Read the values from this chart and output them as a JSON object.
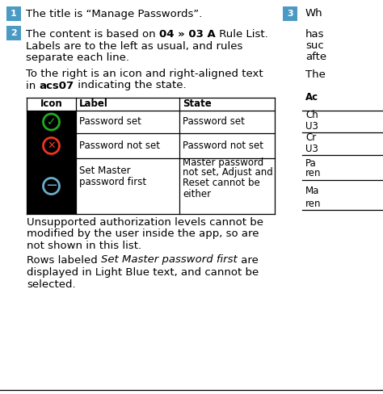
{
  "bg_color": "#ffffff",
  "badge_color": "#4a9ac4",
  "icon_green_color": "#22aa22",
  "icon_red_color": "#ee3322",
  "icon_blue_color": "#6aadcc",
  "icon_black_bg": "#000000",
  "badge1_text": "1",
  "badge2_text": "2",
  "badge3_text": "3",
  "line1": "The title is “Manage Passwords”.",
  "line2_normal": "The content is based on ",
  "line2_bold": "04 » 03 A",
  "line2_rest": " Rule List.",
  "line3": "Labels are to the left as usual, and rules",
  "line4": "separate each line.",
  "line5": "To the right is an icon and right-aligned text",
  "line6_normal": "in ",
  "line6_bold": "acs07",
  "line6_rest": " indicating the state.",
  "note1_line1": "Unsupported authorization levels cannot be",
  "note1_line2": "modified by the user inside the app, so are",
  "note1_line3": "not shown in this list.",
  "note2_normal": "Rows labeled ",
  "note2_italic": "Set Master password first",
  "note2_rest": " are",
  "note2_line2": "displayed in Light Blue text, and cannot be",
  "note2_line3": "selected.",
  "tbl_hdr_icon": "Icon",
  "tbl_hdr_label": "Label",
  "tbl_hdr_state": "State",
  "row1_label": "Password set",
  "row1_state": "Password set",
  "row2_label": "Password not set",
  "row2_state": "Password not set",
  "row3_label_l1": "Set Master",
  "row3_label_l2": "password first",
  "row3_state_l1": "Master password",
  "row3_state_l2": "not set, Adjust and",
  "row3_state_l3": "Reset cannot be",
  "row3_state_l4": "either",
  "right_text_1": "Wh",
  "right_text_2": "has",
  "right_text_3": "suc",
  "right_text_4": "afte",
  "right_text_5": "The",
  "right_hdr": "Ac",
  "right_rows": [
    "Ch",
    "U3",
    "Cr",
    "U3",
    "Pa",
    "ren",
    "Ma",
    "ren"
  ]
}
